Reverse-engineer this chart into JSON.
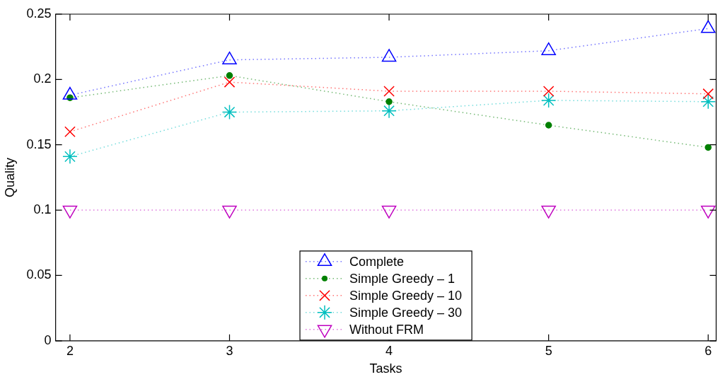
{
  "chart_data": {
    "type": "line",
    "xlabel": "Tasks",
    "ylabel": "Quality",
    "x": [
      2,
      3,
      4,
      5,
      6
    ],
    "xlim": [
      1.91,
      6.05
    ],
    "xticks": [
      2,
      3,
      4,
      5,
      6
    ],
    "ylim": [
      0,
      0.25
    ],
    "yticks": [
      0,
      0.05,
      0.1,
      0.15,
      0.2,
      0.25
    ],
    "grid": false,
    "legend": "bottom",
    "line_style": "dotted",
    "series": [
      {
        "name": "Complete",
        "color": "#0000ff",
        "marker": "triangle",
        "values": [
          0.188,
          0.215,
          0.217,
          0.222,
          0.239
        ]
      },
      {
        "name": "Simple Greedy – 1",
        "color": "#008000",
        "marker": "circle",
        "values": [
          0.186,
          0.203,
          0.183,
          0.165,
          0.148
        ]
      },
      {
        "name": "Simple Greedy – 10",
        "color": "#ff0000",
        "marker": "cross",
        "values": [
          0.16,
          0.198,
          0.191,
          0.191,
          0.189
        ]
      },
      {
        "name": "Simple Greedy – 30",
        "color": "#00bfbf",
        "marker": "cross",
        "values": [
          0.141,
          0.175,
          0.176,
          0.184,
          0.183
        ]
      },
      {
        "name": "Without FRM",
        "color": "#bf00bf",
        "marker": "triangle-down",
        "values": [
          0.1,
          0.1,
          0.1,
          0.1,
          0.1
        ]
      }
    ]
  }
}
